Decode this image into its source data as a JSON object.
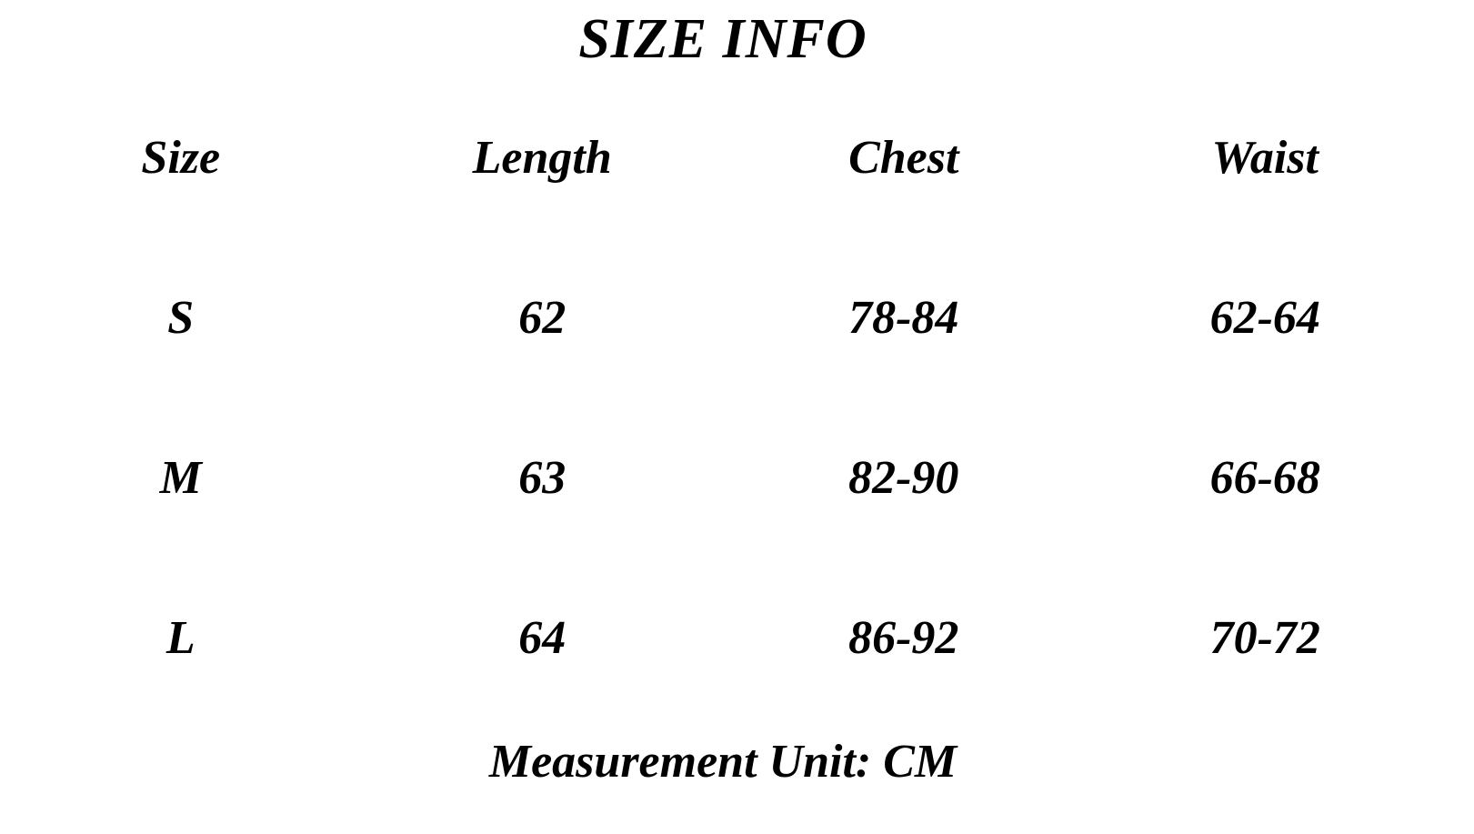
{
  "title": "SIZE INFO",
  "table": {
    "headers": [
      "Size",
      "Length",
      "Chest",
      "Waist"
    ],
    "rows": [
      {
        "cells": [
          "S",
          "62",
          "78-84",
          "62-64"
        ]
      },
      {
        "cells": [
          "M",
          "63",
          "82-90",
          "66-68"
        ]
      },
      {
        "cells": [
          "L",
          "64",
          "86-92",
          "70-72"
        ]
      }
    ]
  },
  "footer": {
    "note": "Measurement Unit: CM"
  },
  "colors": {
    "background": "#ffffff",
    "text": "#000000"
  }
}
